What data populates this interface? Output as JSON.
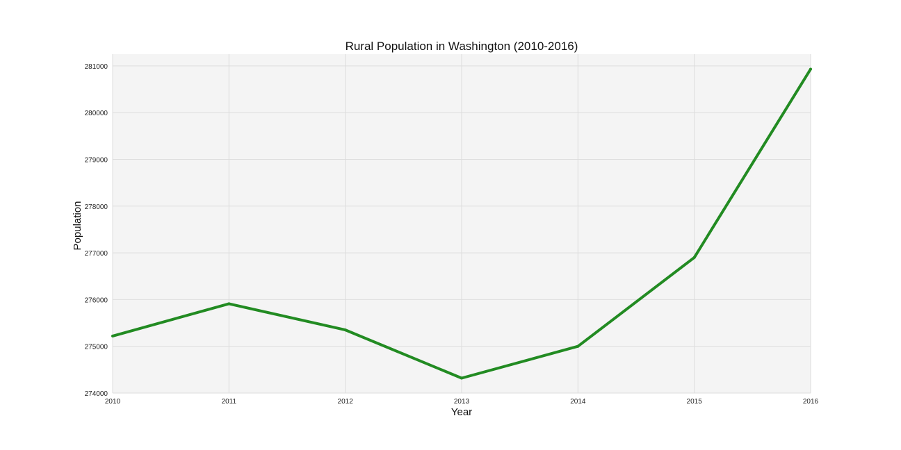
{
  "chart_data": {
    "type": "line",
    "title": "Rural Population in Washington (2010-2016)",
    "xlabel": "Year",
    "ylabel": "Population",
    "x": [
      2010,
      2011,
      2012,
      2013,
      2014,
      2015,
      2016
    ],
    "x_tick_labels": [
      "2010",
      "2011",
      "2012",
      "2013",
      "2014",
      "2015",
      "2016"
    ],
    "y_ticks": [
      274000,
      275000,
      276000,
      277000,
      278000,
      279000,
      280000,
      281000
    ],
    "y_tick_labels": [
      "274000",
      "275000",
      "276000",
      "277000",
      "278000",
      "279000",
      "280000",
      "281000"
    ],
    "xlim": [
      2010,
      2016
    ],
    "ylim": [
      274000,
      281250
    ],
    "grid": true,
    "series": [
      {
        "values": [
          275220,
          275910,
          275350,
          274320,
          275000,
          276900,
          280930
        ],
        "color": "#228b22"
      }
    ],
    "colors": {
      "plot_background": "#f4f4f4",
      "grid": "#dddddd"
    }
  }
}
